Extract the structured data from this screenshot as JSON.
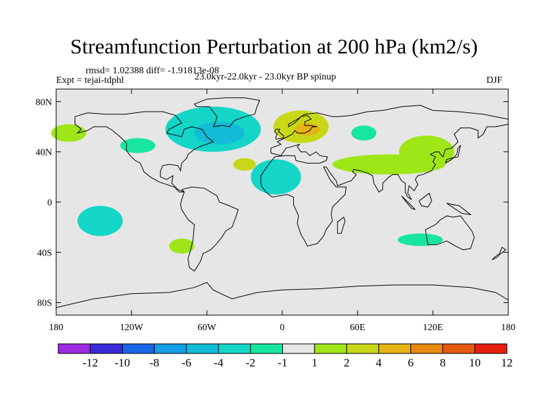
{
  "title": "Streamfunction Perturbation at 200 hPa (km2/s)",
  "stats_line": "rmsd= 1.02388  diff= -1.91813e-08",
  "experiment_line": "Expt = tejai-tdphl",
  "period_line": "23.0kyr-22.0kyr - 23.0kyr BP spinup",
  "season": "DJF",
  "lat_ticks": [
    "80N",
    "40N",
    "0",
    "40S",
    "80S"
  ],
  "lon_ticks": [
    "180",
    "120W",
    "60W",
    "0",
    "60E",
    "120E",
    "180"
  ],
  "colors": {
    "background": "#e6e6e6",
    "coast": "#000000"
  },
  "colorbar": {
    "labels": [
      "-12",
      "-10",
      "-8",
      "-6",
      "-4",
      "-2",
      "-1",
      "1",
      "2",
      "4",
      "6",
      "8",
      "10",
      "12"
    ],
    "colors": [
      "#9a2be0",
      "#3a2bd8",
      "#1a66e6",
      "#139ee6",
      "#12bcd6",
      "#13d6c8",
      "#18e6a0",
      "#e6e6e6",
      "#9ee618",
      "#c8d818",
      "#e6b314",
      "#e68a10",
      "#e65a10",
      "#e61e10"
    ]
  },
  "chart_data": {
    "type": "heatmap",
    "title": "Streamfunction Perturbation at 200 hPa (km2/s)",
    "variable": "streamfunction perturbation",
    "units": "km2/s",
    "level": "200 hPa",
    "season": "DJF",
    "lon_range": [
      -180,
      180
    ],
    "lat_range": [
      -90,
      90
    ],
    "levels": [
      -12,
      -10,
      -8,
      -6,
      -4,
      -2,
      -1,
      1,
      2,
      4,
      6,
      8,
      10,
      12
    ],
    "anomalies": [
      {
        "name": "north-atlantic-low",
        "center": [
          -55,
          58
        ],
        "radius": [
          38,
          18
        ],
        "value": -4
      },
      {
        "name": "north-atlantic-low-inner",
        "center": [
          -50,
          55
        ],
        "radius": [
          20,
          9
        ],
        "value": -5
      },
      {
        "name": "europe-high",
        "center": [
          15,
          60
        ],
        "radius": [
          22,
          13
        ],
        "value": 3
      },
      {
        "name": "europe-high-inner",
        "center": [
          20,
          58
        ],
        "radius": [
          10,
          5
        ],
        "value": 4
      },
      {
        "name": "africa-low",
        "center": [
          -5,
          20
        ],
        "radius": [
          20,
          14
        ],
        "value": -3
      },
      {
        "name": "subtropical-atlantic-high",
        "center": [
          -30,
          30
        ],
        "radius": [
          9,
          5
        ],
        "value": 3
      },
      {
        "name": "alaska-pacific-high",
        "center": [
          -170,
          55
        ],
        "radius": [
          14,
          7
        ],
        "value": 1.5
      },
      {
        "name": "eurasia-ridge",
        "center": [
          85,
          30
        ],
        "radius": [
          45,
          8
        ],
        "value": 1.5
      },
      {
        "name": "east-asia-ridge",
        "center": [
          115,
          40
        ],
        "radius": [
          22,
          13
        ],
        "value": 1.5
      },
      {
        "name": "south-pacific-low",
        "center": [
          -145,
          -15
        ],
        "radius": [
          18,
          12
        ],
        "value": -4
      },
      {
        "name": "central-asia-low",
        "center": [
          65,
          55
        ],
        "radius": [
          10,
          6
        ],
        "value": -1.5
      },
      {
        "name": "north-pacific-low",
        "center": [
          -115,
          45
        ],
        "radius": [
          14,
          6
        ],
        "value": -1.5
      },
      {
        "name": "australia-low",
        "center": [
          110,
          -30
        ],
        "radius": [
          18,
          5
        ],
        "value": -1.5
      },
      {
        "name": "south-atlantic-high",
        "center": [
          -80,
          -35
        ],
        "radius": [
          10,
          6
        ],
        "value": 1.5
      }
    ]
  }
}
